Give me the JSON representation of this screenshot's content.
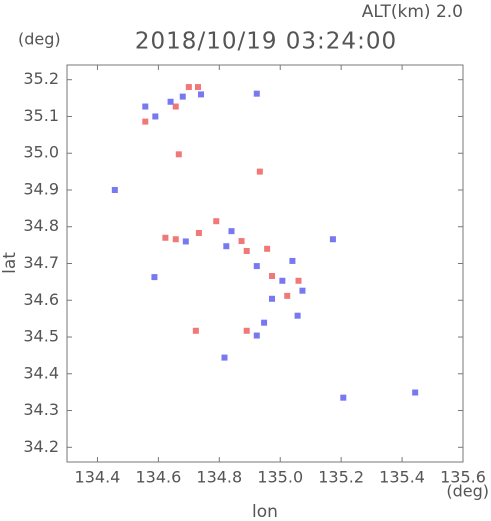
{
  "chart_data": {
    "type": "scatter",
    "title": "2018/10/19 03:24:00",
    "subtitle": "ALT(km) 2.0",
    "x_label": "lon",
    "y_label": "lat",
    "x_unit": "(deg)",
    "y_unit": "(deg)",
    "xlim": [
      134.3,
      135.6
    ],
    "ylim": [
      34.16,
      35.24
    ],
    "xticks": [
      134.4,
      134.6,
      134.8,
      {
        "value": 135,
        "label": "135.0"
      },
      135.2,
      135.4,
      135.6
    ],
    "yticks": [
      34.2,
      34.3,
      34.4,
      34.5,
      34.6,
      34.7,
      34.8,
      34.9,
      {
        "value": 35,
        "label": "35.0"
      },
      35.1,
      35.2
    ],
    "series": [
      {
        "color": "#f07878",
        "x": [
          134.7,
          134.73,
          134.557,
          134.657,
          134.667,
          134.933,
          134.623,
          134.657,
          134.733,
          134.79,
          134.89,
          134.957,
          134.973,
          135.06,
          134.873,
          135.023,
          134.89,
          134.723
        ],
        "y": [
          35.18,
          35.18,
          35.086,
          35.127,
          34.997,
          34.95,
          34.77,
          34.766,
          34.783,
          34.815,
          34.734,
          34.74,
          34.666,
          34.653,
          34.761,
          34.612,
          34.517,
          34.517
        ]
      },
      {
        "color": "#7878f0",
        "x": [
          134.64,
          134.59,
          134.557,
          134.68,
          134.74,
          134.457,
          134.923,
          134.69,
          134.823,
          134.923,
          135.007,
          135.04,
          134.84,
          134.973,
          135.073,
          135.057,
          134.923,
          134.947,
          134.587,
          135.173,
          135.207,
          135.443,
          134.817
        ],
        "y": [
          35.14,
          35.1,
          35.127,
          35.154,
          35.16,
          34.9,
          35.162,
          34.76,
          34.747,
          34.693,
          34.653,
          34.707,
          34.788,
          34.604,
          34.626,
          34.558,
          34.504,
          34.539,
          34.663,
          34.766,
          34.335,
          34.349,
          34.444
        ]
      }
    ]
  }
}
